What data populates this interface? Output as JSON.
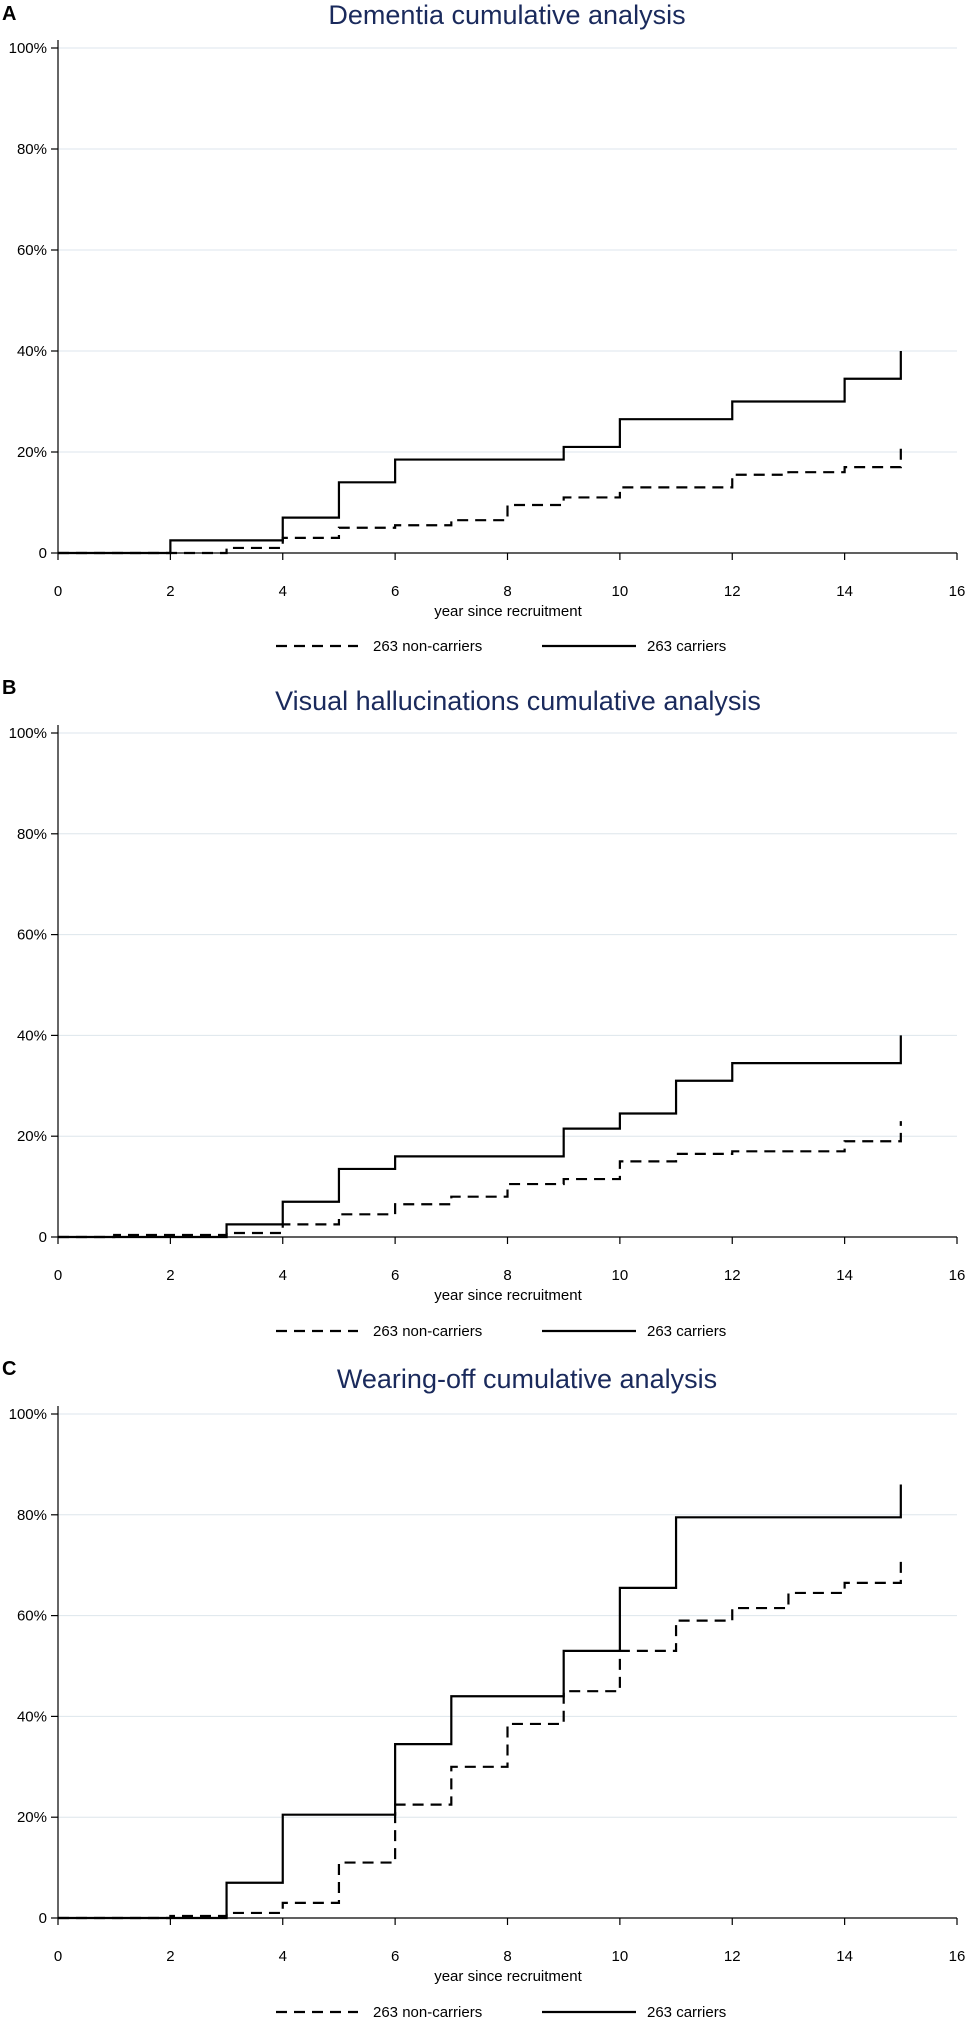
{
  "chart_data": [
    {
      "panel": "A",
      "type": "line",
      "step": true,
      "title": "Dementia cumulative analysis",
      "xlabel": "year since recruitment",
      "ylabel": "",
      "xlim": [
        0,
        16
      ],
      "ylim": [
        0,
        100
      ],
      "x_ticks": [
        "0",
        "2",
        "4",
        "6",
        "8",
        "10",
        "12",
        "14",
        "16"
      ],
      "y_ticks": [
        "0",
        "20%",
        "40%",
        "60%",
        "80%",
        "100%"
      ],
      "grid": true,
      "legend_position": "bottom",
      "series": [
        {
          "name": "263 non-carriers",
          "style": "dashed",
          "x": [
            0,
            3,
            4,
            5,
            6,
            7,
            8,
            9,
            10,
            12,
            13,
            14,
            15,
            15
          ],
          "y": [
            0,
            1,
            3,
            5,
            5.5,
            6.5,
            9.5,
            11,
            13,
            15.5,
            16,
            17,
            17,
            21
          ]
        },
        {
          "name": "263 carriers",
          "style": "solid",
          "x": [
            0,
            2,
            4,
            5,
            6,
            9,
            10,
            12,
            14,
            15,
            15
          ],
          "y": [
            0,
            2.5,
            7,
            14,
            18.5,
            21,
            26.5,
            30,
            34.5,
            34.5,
            40
          ]
        }
      ]
    },
    {
      "panel": "B",
      "type": "line",
      "step": true,
      "title": "Visual hallucinations cumulative analysis",
      "xlabel": "year since recruitment",
      "ylabel": "",
      "xlim": [
        0,
        16
      ],
      "ylim": [
        0,
        100
      ],
      "x_ticks": [
        "0",
        "2",
        "4",
        "6",
        "8",
        "10",
        "12",
        "14",
        "16"
      ],
      "y_ticks": [
        "0",
        "20%",
        "40%",
        "60%",
        "80%",
        "100%"
      ],
      "grid": true,
      "legend_position": "bottom",
      "series": [
        {
          "name": "263 non-carriers",
          "style": "dashed",
          "x": [
            0,
            1,
            3,
            4,
            5,
            6,
            7,
            8,
            9,
            10,
            11,
            12,
            14,
            15,
            15
          ],
          "y": [
            0,
            0.4,
            0.8,
            2.5,
            4.5,
            6.5,
            8,
            10.5,
            11.5,
            15,
            16.5,
            17,
            19,
            20.5,
            23
          ]
        },
        {
          "name": "263 carriers",
          "style": "solid",
          "x": [
            0,
            3,
            4,
            5,
            6,
            9,
            10,
            11,
            12,
            15,
            15
          ],
          "y": [
            0,
            2.5,
            7,
            13.5,
            16,
            21.5,
            24.5,
            31,
            34.5,
            34.5,
            40
          ]
        }
      ]
    },
    {
      "panel": "C",
      "type": "line",
      "step": true,
      "title": "Wearing-off cumulative analysis",
      "xlabel": "year since recruitment",
      "ylabel": "",
      "xlim": [
        0,
        16
      ],
      "ylim": [
        0,
        100
      ],
      "x_ticks": [
        "0",
        "2",
        "4",
        "6",
        "8",
        "10",
        "12",
        "14",
        "16"
      ],
      "y_ticks": [
        "0",
        "20%",
        "40%",
        "60%",
        "80%",
        "100%"
      ],
      "grid": true,
      "legend_position": "bottom",
      "series": [
        {
          "name": "263 non-carriers",
          "style": "dashed",
          "x": [
            0,
            2,
            3,
            4,
            5,
            6,
            7,
            8,
            9,
            10,
            11,
            12,
            13,
            14,
            15,
            15
          ],
          "y": [
            0,
            0.4,
            1,
            3,
            11,
            22.5,
            30,
            38.5,
            45,
            53,
            59,
            61.5,
            64.5,
            66.5,
            66.5,
            71.5
          ]
        },
        {
          "name": "263 carriers",
          "style": "solid",
          "x": [
            0,
            3,
            4,
            6,
            7,
            9,
            10,
            11,
            15,
            15
          ],
          "y": [
            0,
            7,
            20.5,
            34.5,
            44,
            53,
            65.5,
            79.5,
            79.5,
            86
          ]
        }
      ]
    }
  ]
}
